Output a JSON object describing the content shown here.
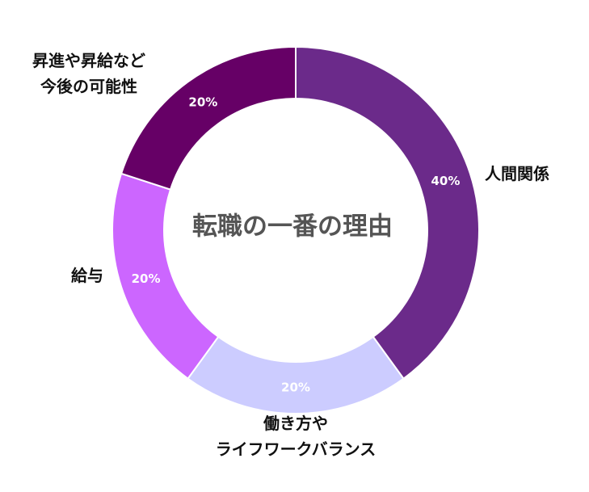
{
  "chart_data": {
    "type": "pie",
    "subtype": "donut",
    "title": "転職の一番の理由",
    "start_angle_deg": 0,
    "direction": "clockwise",
    "slices": [
      {
        "label": "人間関係",
        "value": 40,
        "value_label": "40%",
        "color": "#6b2a8a"
      },
      {
        "label": "働き方や\nライフワークバランス",
        "value": 20,
        "value_label": "20%",
        "color": "#ccccff"
      },
      {
        "label": "給与",
        "value": 20,
        "value_label": "20%",
        "color": "#cc66ff"
      },
      {
        "label": "昇進や昇給など\n今後の可能性",
        "value": 20,
        "value_label": "20%",
        "color": "#660066"
      }
    ]
  }
}
